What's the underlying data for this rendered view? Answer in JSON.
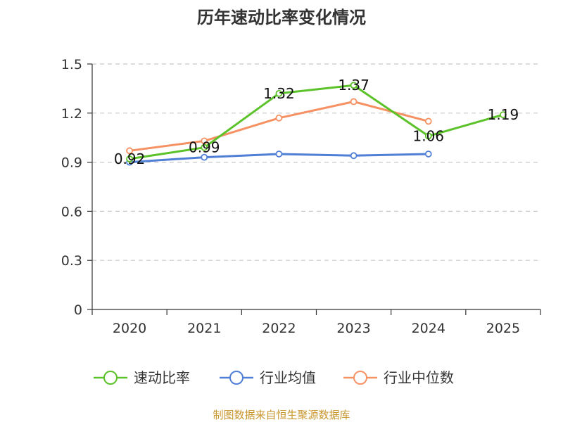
{
  "chart_data": {
    "type": "line",
    "title": "历年速动比率变化情况",
    "categories": [
      "2020",
      "2021",
      "2022",
      "2023",
      "2024",
      "2025"
    ],
    "y_ticks": [
      "0",
      "0.3",
      "0.6",
      "0.9",
      "1.2",
      "1.5"
    ],
    "ylim": [
      0,
      1.5
    ],
    "grid": true,
    "legend_position": "bottom",
    "series": [
      {
        "name": "速动比率",
        "color": "#5cc229",
        "values": [
          0.92,
          0.99,
          1.32,
          1.37,
          1.06,
          1.19
        ],
        "labels": [
          "0.92",
          "0.99",
          "1.32",
          "1.37",
          "1.06",
          "1.19"
        ]
      },
      {
        "name": "行业均值",
        "color": "#4f7fd6",
        "values": [
          0.9,
          0.93,
          0.95,
          0.94,
          0.95,
          null
        ]
      },
      {
        "name": "行业中位数",
        "color": "#f59162",
        "values": [
          0.97,
          1.03,
          1.17,
          1.27,
          1.15,
          null
        ]
      }
    ],
    "source": "制图数据来自恒生聚源数据库"
  }
}
